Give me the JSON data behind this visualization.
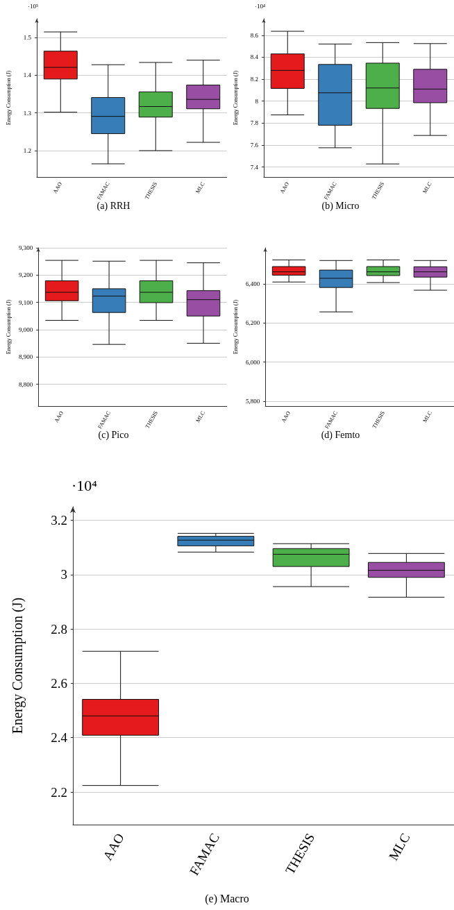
{
  "chart_data": [
    {
      "type": "box",
      "title": "(a) RRH",
      "ylabel": "Energy Consumption (J)",
      "annotations": [
        "·10⁵"
      ],
      "categories": [
        "AAO",
        "FAMAC",
        "THESIS",
        "MLC"
      ],
      "colors": [
        "#e41a1c",
        "#377eb8",
        "#4daf4a",
        "#984ea3"
      ],
      "ylim": [
        1.13,
        1.55
      ],
      "yticks": [
        1.2,
        1.3,
        1.4,
        1.5
      ],
      "grid": "y",
      "boxes": [
        {
          "low": 1.302,
          "q1": 1.39,
          "median": 1.421,
          "q3": 1.464,
          "high": 1.515
        },
        {
          "low": 1.165,
          "q1": 1.245,
          "median": 1.291,
          "q3": 1.341,
          "high": 1.428
        },
        {
          "low": 1.2,
          "q1": 1.289,
          "median": 1.317,
          "q3": 1.356,
          "high": 1.434
        },
        {
          "low": 1.222,
          "q1": 1.311,
          "median": 1.336,
          "q3": 1.374,
          "high": 1.44
        }
      ]
    },
    {
      "type": "box",
      "title": "(b) Micro",
      "ylabel": "Energy Consumption (J)",
      "annotations": [
        "·10⁴"
      ],
      "categories": [
        "AAO",
        "FAMAC",
        "THESIS",
        "MLC"
      ],
      "colors": [
        "#e41a1c",
        "#377eb8",
        "#4daf4a",
        "#984ea3"
      ],
      "ylim": [
        7.31,
        8.75
      ],
      "yticks": [
        7.4,
        7.6,
        7.8,
        8,
        8.2,
        8.4,
        8.6
      ],
      "grid": "y",
      "boxes": [
        {
          "low": 7.875,
          "q1": 8.116,
          "median": 8.28,
          "q3": 8.43,
          "high": 8.636
        },
        {
          "low": 7.576,
          "q1": 7.781,
          "median": 8.076,
          "q3": 8.334,
          "high": 8.52
        },
        {
          "low": 7.429,
          "q1": 7.934,
          "median": 8.12,
          "q3": 8.346,
          "high": 8.533
        },
        {
          "low": 7.688,
          "q1": 7.986,
          "median": 8.11,
          "q3": 8.29,
          "high": 8.524
        }
      ]
    },
    {
      "type": "box",
      "title": "(c) Pico",
      "ylabel": "Energy Consumption (J)",
      "categories": [
        "AAO",
        "FAMAC",
        "THESIS",
        "MLC"
      ],
      "colors": [
        "#e41a1c",
        "#377eb8",
        "#4daf4a",
        "#984ea3"
      ],
      "ylim": [
        8720,
        9300
      ],
      "yticks": [
        {
          "value": 8800,
          "label": "8,800"
        },
        {
          "value": 8900,
          "label": "8,900"
        },
        {
          "value": 9000,
          "label": "9,000"
        },
        {
          "value": 9100,
          "label": "9,100"
        },
        {
          "value": 9200,
          "label": "9,200"
        },
        {
          "value": 9300,
          "label": "9,300"
        }
      ],
      "grid": "y",
      "boxes": [
        {
          "low": 9034,
          "q1": 9106,
          "median": 9137,
          "q3": 9179,
          "high": 9254
        },
        {
          "low": 8946,
          "q1": 9063,
          "median": 9123,
          "q3": 9150,
          "high": 9251
        },
        {
          "low": 9034,
          "q1": 9099,
          "median": 9137,
          "q3": 9179,
          "high": 9254
        },
        {
          "low": 8950,
          "q1": 9050,
          "median": 9110,
          "q3": 9143,
          "high": 9245
        }
      ]
    },
    {
      "type": "box",
      "title": "(d) Femto",
      "ylabel": "Energy Consumption (J)",
      "categories": [
        "AAO",
        "FAMAC",
        "THESIS",
        "MLC"
      ],
      "colors": [
        "#e41a1c",
        "#377eb8",
        "#4daf4a",
        "#984ea3"
      ],
      "ylim": [
        5775,
        6585
      ],
      "yticks": [
        {
          "value": 5800,
          "label": "5,800"
        },
        {
          "value": 6000,
          "label": "6,000"
        },
        {
          "value": 6200,
          "label": "6,200"
        },
        {
          "value": 6400,
          "label": "6,400"
        }
      ],
      "grid": "y",
      "boxes": [
        {
          "low": 6410,
          "q1": 6445,
          "median": 6462,
          "q3": 6489,
          "high": 6523
        },
        {
          "low": 6257,
          "q1": 6382,
          "median": 6429,
          "q3": 6471,
          "high": 6520
        },
        {
          "low": 6407,
          "q1": 6443,
          "median": 6462,
          "q3": 6489,
          "high": 6523
        },
        {
          "low": 6368,
          "q1": 6435,
          "median": 6462,
          "q3": 6488,
          "high": 6520
        }
      ]
    },
    {
      "type": "box",
      "title": "(e) Macro",
      "ylabel": "Energy Consumption (J)",
      "annotations": [
        "·10⁴"
      ],
      "categories": [
        "AAO",
        "FAMAC",
        "THESIS",
        "MLC"
      ],
      "colors": [
        "#e41a1c",
        "#377eb8",
        "#4daf4a",
        "#984ea3"
      ],
      "ylim": [
        2.08,
        3.25
      ],
      "yticks": [
        2.2,
        2.4,
        2.6,
        2.8,
        3,
        3.2
      ],
      "grid": "y",
      "boxes": [
        {
          "low": 2.224,
          "q1": 2.409,
          "median": 2.48,
          "q3": 2.541,
          "high": 2.718
        },
        {
          "low": 3.083,
          "q1": 3.106,
          "median": 3.127,
          "q3": 3.141,
          "high": 3.152
        },
        {
          "low": 2.956,
          "q1": 3.03,
          "median": 3.075,
          "q3": 3.096,
          "high": 3.114
        },
        {
          "low": 2.917,
          "q1": 2.99,
          "median": 3.016,
          "q3": 3.045,
          "high": 3.078
        }
      ]
    }
  ]
}
